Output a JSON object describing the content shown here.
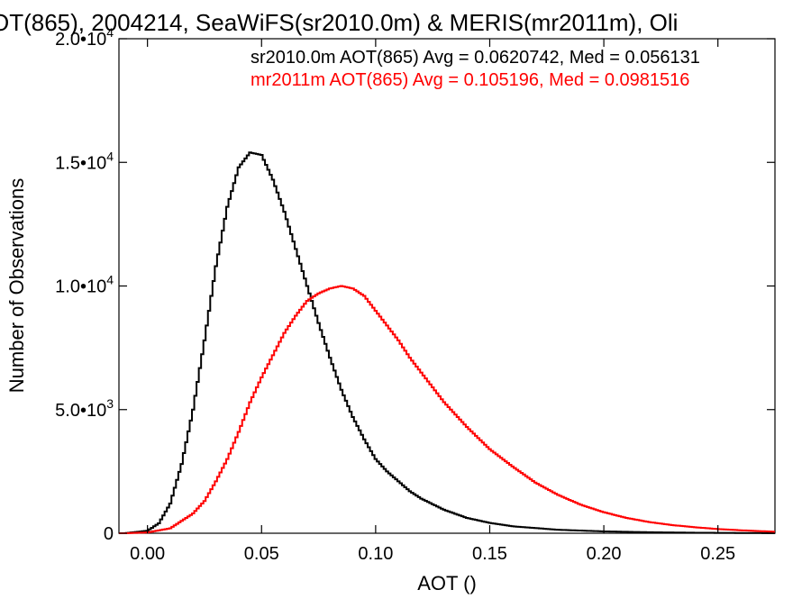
{
  "chart_data": {
    "type": "line",
    "title": "OT(865), 2004214, SeaWiFS(sr2010.0m) & MERIS(mr2011m), Oli",
    "xlabel": "AOT ()",
    "ylabel": "Number of Observations",
    "xlim": [
      -0.0125,
      0.275
    ],
    "ylim": [
      0,
      20000
    ],
    "grid": false,
    "legend_position": "top-right",
    "x_ticks": [
      {
        "value": 0.0,
        "label": "0.00"
      },
      {
        "value": 0.05,
        "label": "0.05"
      },
      {
        "value": 0.1,
        "label": "0.10"
      },
      {
        "value": 0.15,
        "label": "0.15"
      },
      {
        "value": 0.2,
        "label": "0.20"
      },
      {
        "value": 0.25,
        "label": "0.25"
      }
    ],
    "y_ticks": [
      {
        "value": 0,
        "mantissa": "0",
        "exp": ""
      },
      {
        "value": 5000,
        "mantissa": "5.0•10",
        "exp": "3"
      },
      {
        "value": 10000,
        "mantissa": "1.0•10",
        "exp": "4"
      },
      {
        "value": 15000,
        "mantissa": "1.5•10",
        "exp": "4"
      },
      {
        "value": 20000,
        "mantissa": "2.0•10",
        "exp": "4"
      }
    ],
    "annotations": [
      {
        "text": "sr2010.0m AOT(865) Avg = 0.0620742, Med = 0.056131",
        "color": "#000000"
      },
      {
        "text": "mr2011m AOT(865) Avg = 0.105196, Med = 0.0981516",
        "color": "#ff0000"
      }
    ],
    "series": [
      {
        "color": "#000000",
        "x": [
          -0.01,
          0.0,
          0.005,
          0.01,
          0.015,
          0.02,
          0.025,
          0.03,
          0.035,
          0.04,
          0.045,
          0.05,
          0.055,
          0.06,
          0.065,
          0.07,
          0.075,
          0.08,
          0.085,
          0.09,
          0.095,
          0.1,
          0.105,
          0.11,
          0.115,
          0.12,
          0.13,
          0.14,
          0.15,
          0.16,
          0.18,
          0.2,
          0.22,
          0.24,
          0.26,
          0.275
        ],
        "y": [
          0,
          100,
          400,
          1200,
          2800,
          5000,
          7800,
          10800,
          13200,
          14800,
          15400,
          15300,
          14300,
          13000,
          11500,
          10000,
          8500,
          7100,
          5800,
          4700,
          3800,
          3000,
          2500,
          2100,
          1700,
          1400,
          950,
          620,
          420,
          280,
          140,
          75,
          40,
          20,
          10,
          5
        ]
      },
      {
        "color": "#ff0000",
        "x": [
          -0.01,
          0.0,
          0.01,
          0.015,
          0.02,
          0.025,
          0.03,
          0.035,
          0.04,
          0.045,
          0.05,
          0.055,
          0.06,
          0.065,
          0.07,
          0.075,
          0.08,
          0.085,
          0.09,
          0.095,
          0.1,
          0.105,
          0.11,
          0.115,
          0.12,
          0.125,
          0.13,
          0.14,
          0.15,
          0.16,
          0.17,
          0.18,
          0.19,
          0.2,
          0.21,
          0.22,
          0.23,
          0.24,
          0.25,
          0.26,
          0.275
        ],
        "y": [
          0,
          30,
          200,
          500,
          800,
          1300,
          2100,
          3000,
          4100,
          5300,
          6300,
          7200,
          8100,
          8800,
          9400,
          9700,
          9900,
          10000,
          9900,
          9600,
          9000,
          8400,
          7800,
          7100,
          6500,
          5900,
          5300,
          4300,
          3400,
          2700,
          2050,
          1550,
          1150,
          850,
          620,
          450,
          330,
          240,
          170,
          120,
          60
        ]
      }
    ]
  }
}
